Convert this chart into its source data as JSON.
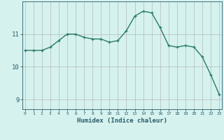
{
  "x": [
    0,
    1,
    2,
    3,
    4,
    5,
    6,
    7,
    8,
    9,
    10,
    11,
    12,
    13,
    14,
    15,
    16,
    17,
    18,
    19,
    20,
    21,
    22,
    23
  ],
  "y": [
    10.5,
    10.5,
    10.5,
    10.6,
    10.8,
    11.0,
    11.0,
    10.9,
    10.85,
    10.85,
    10.75,
    10.8,
    11.1,
    11.55,
    11.7,
    11.65,
    11.2,
    10.65,
    10.6,
    10.65,
    10.6,
    10.3,
    9.75,
    9.15
  ],
  "line_color": "#2a7a6a",
  "marker": "+",
  "marker_size": 3,
  "bg_color": "#d5f2ee",
  "grid_color": "#b8b8b8",
  "xlabel": "Humidex (Indice chaleur)",
  "xlabel_color": "#2a5a6a",
  "tick_color": "#2a5a6a",
  "yticks": [
    9,
    10,
    11
  ],
  "xticks": [
    0,
    1,
    2,
    3,
    4,
    5,
    6,
    7,
    8,
    9,
    10,
    11,
    12,
    13,
    14,
    15,
    16,
    17,
    18,
    19,
    20,
    21,
    22,
    23
  ],
  "ylim": [
    8.7,
    12.0
  ],
  "xlim": [
    -0.3,
    23.3
  ],
  "linewidth": 1.0
}
